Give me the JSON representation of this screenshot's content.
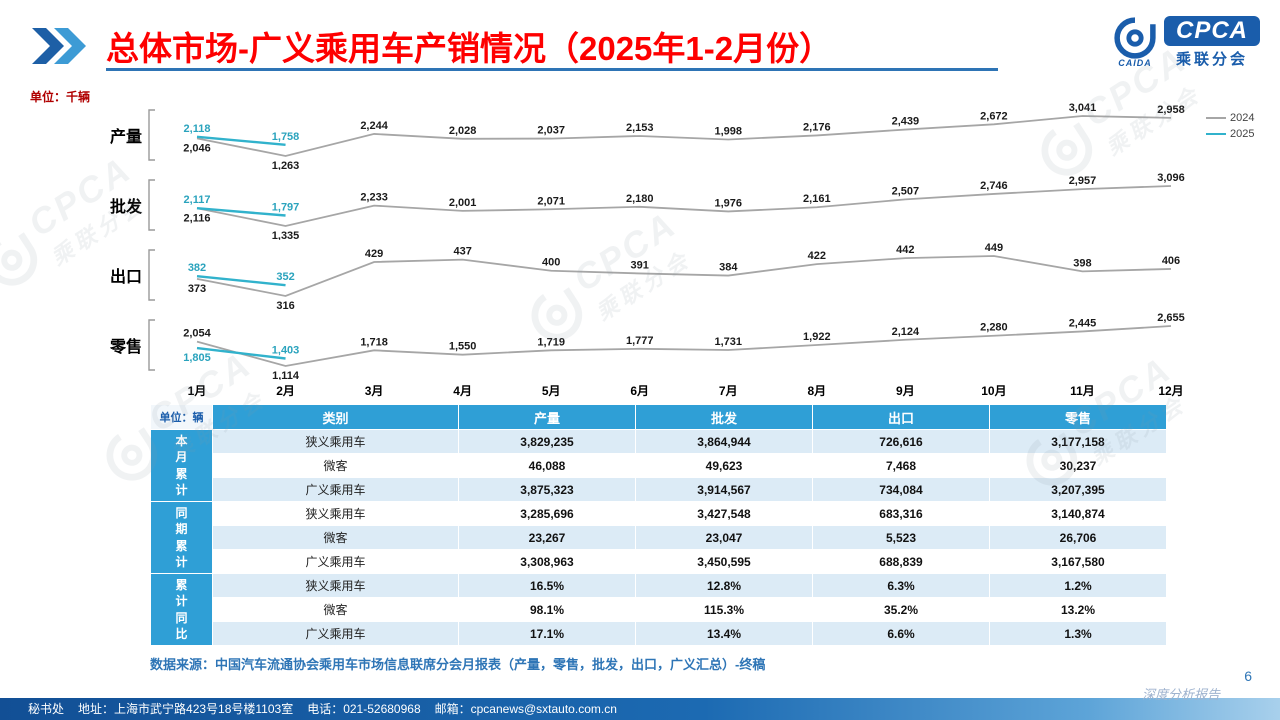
{
  "header": {
    "title": "总体市场-广义乘用车产销情况（2025年1-2月份）",
    "unit_label": "单位：千辆"
  },
  "logo": {
    "cpca": "CPCA",
    "sub": "乘联分会",
    "caida": "CAIDA"
  },
  "chart_data": {
    "type": "line",
    "categories": [
      "1月",
      "2月",
      "3月",
      "4月",
      "5月",
      "6月",
      "7月",
      "8月",
      "9月",
      "10月",
      "11月",
      "12月"
    ],
    "legend": [
      "2024",
      "2025"
    ],
    "legend_position": "top-right",
    "grid": false,
    "colors": {
      "series_2024": "#a6a6a6",
      "series_2025": "#31b2cc",
      "label_2024": "#1a1a1a",
      "label_2025": "#2aa3bd"
    },
    "charts": [
      {
        "key": "production",
        "label": "产量",
        "series": [
          {
            "name": "2024",
            "values": [
              2046,
              1263,
              2244,
              2028,
              2037,
              2153,
              1998,
              2176,
              2439,
              2672,
              3041,
              2958
            ]
          },
          {
            "name": "2025",
            "values": [
              2118,
              1758
            ]
          }
        ]
      },
      {
        "key": "wholesale",
        "label": "批发",
        "series": [
          {
            "name": "2024",
            "values": [
              2116,
              1335,
              2233,
              2001,
              2071,
              2180,
              1976,
              2161,
              2507,
              2746,
              2957,
              3096
            ]
          },
          {
            "name": "2025",
            "values": [
              2117,
              1797
            ]
          }
        ]
      },
      {
        "key": "export",
        "label": "出口",
        "series": [
          {
            "name": "2024",
            "values": [
              373,
              316,
              429,
              437,
              400,
              391,
              384,
              422,
              442,
              449,
              398,
              406
            ]
          },
          {
            "name": "2025",
            "values": [
              382,
              352
            ]
          }
        ]
      },
      {
        "key": "retail",
        "label": "零售",
        "series": [
          {
            "name": "2024",
            "values": [
              2054,
              1114,
              1718,
              1550,
              1719,
              1777,
              1731,
              1922,
              2124,
              2280,
              2445,
              2655
            ]
          },
          {
            "name": "2025",
            "values": [
              1805,
              1403
            ]
          }
        ]
      }
    ]
  },
  "table": {
    "unit_label": "单位：辆",
    "columns": [
      "类别",
      "产量",
      "批发",
      "出口",
      "零售"
    ],
    "groups": [
      {
        "label": "本月累计",
        "rows": [
          {
            "category": "狭义乘用车",
            "values": [
              "3,829,235",
              "3,864,944",
              "726,616",
              "3,177,158"
            ]
          },
          {
            "category": "微客",
            "values": [
              "46,088",
              "49,623",
              "7,468",
              "30,237"
            ]
          },
          {
            "category": "广义乘用车",
            "values": [
              "3,875,323",
              "3,914,567",
              "734,084",
              "3,207,395"
            ]
          }
        ]
      },
      {
        "label": "同期累计",
        "rows": [
          {
            "category": "狭义乘用车",
            "values": [
              "3,285,696",
              "3,427,548",
              "683,316",
              "3,140,874"
            ]
          },
          {
            "category": "微客",
            "values": [
              "23,267",
              "23,047",
              "5,523",
              "26,706"
            ]
          },
          {
            "category": "广义乘用车",
            "values": [
              "3,308,963",
              "3,450,595",
              "688,839",
              "3,167,580"
            ]
          }
        ]
      },
      {
        "label": "累计同比",
        "rows": [
          {
            "category": "狭义乘用车",
            "values": [
              "16.5%",
              "12.8%",
              "6.3%",
              "1.2%"
            ]
          },
          {
            "category": "微客",
            "values": [
              "98.1%",
              "115.3%",
              "35.2%",
              "13.2%"
            ]
          },
          {
            "category": "广义乘用车",
            "values": [
              "17.1%",
              "13.4%",
              "6.6%",
              "1.3%"
            ]
          }
        ]
      }
    ]
  },
  "source_note": "数据来源：中国汽车流通协会乘用车市场信息联席分会月报表（产量，零售，批发，出口，广义汇总）-终稿",
  "footer": {
    "secretariat": "秘书处",
    "address": "地址：上海市武宁路423号18号楼1103室",
    "phone": "电话：021-52680968",
    "email": "邮箱：cpcanews@sxtauto.com.cn",
    "report_label": "深度分析报告",
    "page_number": "6"
  }
}
